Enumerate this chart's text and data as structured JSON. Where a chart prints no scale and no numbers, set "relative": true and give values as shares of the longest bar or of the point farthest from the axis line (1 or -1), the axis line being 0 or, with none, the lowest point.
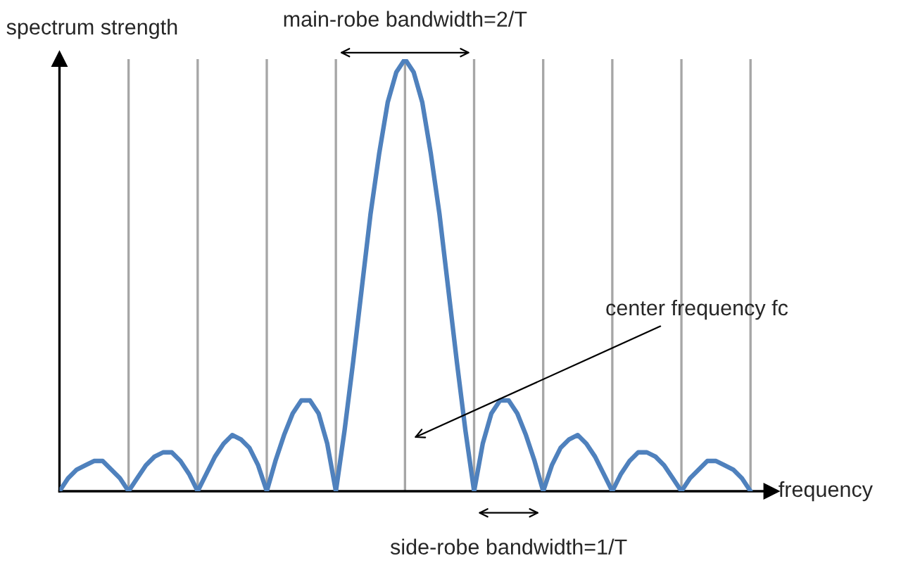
{
  "chart_data": {
    "type": "line",
    "relative": true,
    "xlabel": "frequency",
    "ylabel": "spectrum strength",
    "categories": [
      null,
      null,
      null,
      null,
      null,
      null,
      null,
      null,
      null,
      null,
      null,
      null,
      null,
      null,
      null,
      null,
      null,
      null,
      null,
      null,
      null,
      null,
      null,
      null,
      null,
      null,
      null,
      null,
      null,
      null,
      null,
      null,
      null,
      null,
      null,
      null,
      null,
      null,
      null,
      null,
      null,
      null,
      null,
      null,
      null,
      null,
      null,
      null,
      null,
      null,
      null,
      null,
      null,
      null,
      null,
      null,
      null,
      null,
      null,
      null,
      null,
      null,
      null,
      null,
      null,
      null,
      null,
      null,
      null,
      null,
      null,
      null,
      null,
      null,
      null,
      null,
      null,
      null,
      null,
      null,
      null
    ],
    "series": [
      {
        "color": "#4f81bd",
        "values": [
          0,
          0.03,
          0.05,
          0.06,
          0.07,
          0.07,
          0.05,
          0.03,
          0,
          0.03,
          0.06,
          0.08,
          0.09,
          0.09,
          0.07,
          0.04,
          0,
          0.04,
          0.08,
          0.11,
          0.13,
          0.12,
          0.1,
          0.06,
          0,
          0.07,
          0.13,
          0.18,
          0.21,
          0.21,
          0.18,
          0.11,
          0,
          0.14,
          0.3,
          0.47,
          0.64,
          0.78,
          0.9,
          0.97,
          1,
          0.97,
          0.9,
          0.78,
          0.64,
          0.47,
          0.3,
          0.14,
          0,
          0.11,
          0.18,
          0.21,
          0.21,
          0.18,
          0.13,
          0.07,
          0,
          0.06,
          0.1,
          0.12,
          0.13,
          0.11,
          0.08,
          0.04,
          0,
          0.04,
          0.07,
          0.09,
          0.09,
          0.08,
          0.06,
          0.03,
          0,
          0.03,
          0.05,
          0.07,
          0.07,
          0.06,
          0.05,
          0.03,
          0
        ]
      }
    ],
    "grid": "x",
    "marker": "none",
    "line_style": "solid",
    "annotations": [
      "main-robe bandwidth=2/T",
      "center frequency fc",
      "side-robe bandwidth=1/T"
    ]
  }
}
